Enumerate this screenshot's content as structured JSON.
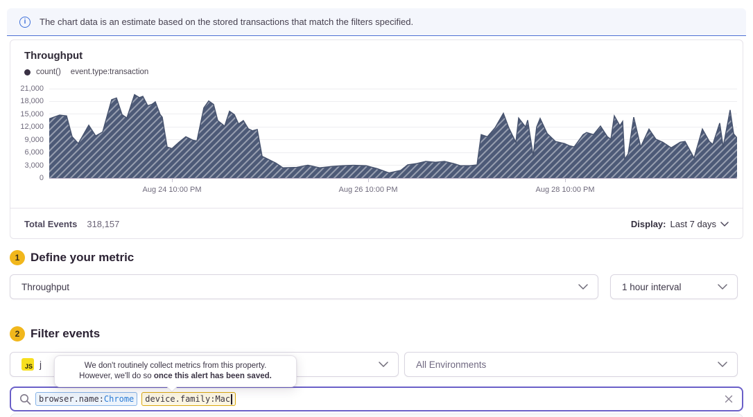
{
  "banner": {
    "text": "The chart data is an estimate based on the stored transactions that match the filters specified."
  },
  "chart": {
    "title": "Throughput",
    "legend": {
      "series_label": "count()",
      "query_label": "event.type:transaction"
    },
    "footer": {
      "total_events_label": "Total Events",
      "total_events_value": "318,157",
      "display_label": "Display:",
      "display_value": "Last 7 days"
    }
  },
  "chart_data": {
    "type": "area",
    "title": "Throughput",
    "xlabel": "",
    "ylabel": "",
    "ylim": [
      0,
      21000
    ],
    "grid": true,
    "legend_position": "top-left",
    "y_ticks": [
      {
        "value": 21000,
        "label": "21,000"
      },
      {
        "value": 18000,
        "label": "18,000"
      },
      {
        "value": 15000,
        "label": "15,000"
      },
      {
        "value": 12000,
        "label": "12,000"
      },
      {
        "value": 9000,
        "label": "9,000"
      },
      {
        "value": 6000,
        "label": "6,000"
      },
      {
        "value": 3000,
        "label": "3,000"
      },
      {
        "value": 0,
        "label": "0"
      }
    ],
    "x_ticks": [
      {
        "pos": 177,
        "label": "Aug 24 10:00 PM"
      },
      {
        "pos": 460,
        "label": "Aug 26 10:00 PM"
      },
      {
        "pos": 744,
        "label": "Aug 28 10:00 PM"
      }
    ],
    "series": [
      {
        "name": "count() event.type:transaction",
        "points": [
          [
            0,
            13900
          ],
          [
            15,
            14800
          ],
          [
            25,
            14600
          ],
          [
            33,
            9700
          ],
          [
            42,
            8100
          ],
          [
            57,
            12400
          ],
          [
            67,
            9900
          ],
          [
            77,
            10800
          ],
          [
            90,
            18400
          ],
          [
            97,
            18800
          ],
          [
            105,
            14900
          ],
          [
            112,
            14100
          ],
          [
            123,
            19600
          ],
          [
            130,
            18900
          ],
          [
            135,
            19200
          ],
          [
            142,
            17000
          ],
          [
            148,
            17300
          ],
          [
            153,
            17900
          ],
          [
            160,
            14900
          ],
          [
            163,
            14300
          ],
          [
            170,
            7300
          ],
          [
            177,
            6900
          ],
          [
            187,
            8400
          ],
          [
            197,
            9700
          ],
          [
            207,
            8900
          ],
          [
            213,
            8700
          ],
          [
            223,
            16500
          ],
          [
            230,
            18100
          ],
          [
            237,
            17300
          ],
          [
            243,
            13500
          ],
          [
            253,
            12200
          ],
          [
            260,
            15700
          ],
          [
            267,
            14900
          ],
          [
            273,
            12700
          ],
          [
            280,
            13500
          ],
          [
            287,
            11600
          ],
          [
            293,
            11100
          ],
          [
            300,
            11400
          ],
          [
            307,
            5100
          ],
          [
            317,
            4300
          ],
          [
            327,
            3500
          ],
          [
            337,
            2400
          ],
          [
            357,
            2500
          ],
          [
            373,
            3000
          ],
          [
            390,
            2400
          ],
          [
            407,
            2700
          ],
          [
            423,
            2900
          ],
          [
            440,
            3000
          ],
          [
            457,
            2900
          ],
          [
            473,
            2200
          ],
          [
            490,
            1200
          ],
          [
            507,
            1800
          ],
          [
            517,
            3100
          ],
          [
            530,
            3400
          ],
          [
            543,
            3900
          ],
          [
            557,
            3700
          ],
          [
            570,
            3900
          ],
          [
            583,
            3400
          ],
          [
            593,
            2900
          ],
          [
            607,
            2900
          ],
          [
            617,
            3100
          ],
          [
            623,
            10200
          ],
          [
            632,
            9700
          ],
          [
            643,
            11800
          ],
          [
            655,
            15200
          ],
          [
            663,
            11700
          ],
          [
            673,
            8400
          ],
          [
            677,
            14100
          ],
          [
            687,
            12000
          ],
          [
            690,
            13600
          ],
          [
            698,
            5200
          ],
          [
            703,
            12000
          ],
          [
            708,
            14000
          ],
          [
            718,
            10500
          ],
          [
            730,
            8600
          ],
          [
            743,
            8100
          ],
          [
            750,
            7600
          ],
          [
            757,
            7300
          ],
          [
            770,
            10200
          ],
          [
            775,
            10700
          ],
          [
            785,
            10200
          ],
          [
            795,
            12200
          ],
          [
            805,
            9700
          ],
          [
            810,
            9100
          ],
          [
            815,
            14600
          ],
          [
            823,
            12300
          ],
          [
            827,
            13300
          ],
          [
            830,
            4400
          ],
          [
            835,
            5700
          ],
          [
            843,
            14300
          ],
          [
            853,
            7300
          ],
          [
            865,
            11500
          ],
          [
            875,
            9100
          ],
          [
            885,
            8400
          ],
          [
            897,
            7100
          ],
          [
            910,
            8400
          ],
          [
            917,
            8600
          ],
          [
            930,
            4700
          ],
          [
            942,
            11500
          ],
          [
            952,
            8600
          ],
          [
            957,
            7900
          ],
          [
            967,
            12900
          ],
          [
            972,
            7300
          ],
          [
            982,
            16000
          ],
          [
            987,
            10400
          ],
          [
            992,
            9400
          ]
        ]
      }
    ]
  },
  "step1": {
    "number": "1",
    "title": "Define your metric",
    "metric_select": "Throughput",
    "interval_select": "1 hour interval"
  },
  "step2": {
    "number": "2",
    "title": "Filter events",
    "project_badge": "JS",
    "project_label_visible": "j",
    "environment_select": "All Environments"
  },
  "tooltip": {
    "line1": "We don't routinely collect metrics from this property.",
    "line2_prefix": "However, we'll do so ",
    "line2_bold": "once this alert has been saved."
  },
  "search": {
    "tokens": [
      {
        "key": "browser.name:",
        "value": "Chrome",
        "state": "valid"
      },
      {
        "key": "device.family:",
        "value": "Mac",
        "state": "warning"
      }
    ]
  },
  "colors": {
    "accent_purple": "#6a5fc8",
    "series_fill": "#4d5a77",
    "series_hatch": "#949cad",
    "banner_border": "#4d6fd4",
    "step_badge": "#f1b71c",
    "token_valid_border": "#86b3e7",
    "token_warning_border": "#dba80e",
    "js_badge_yellow": "#f7df1e"
  }
}
